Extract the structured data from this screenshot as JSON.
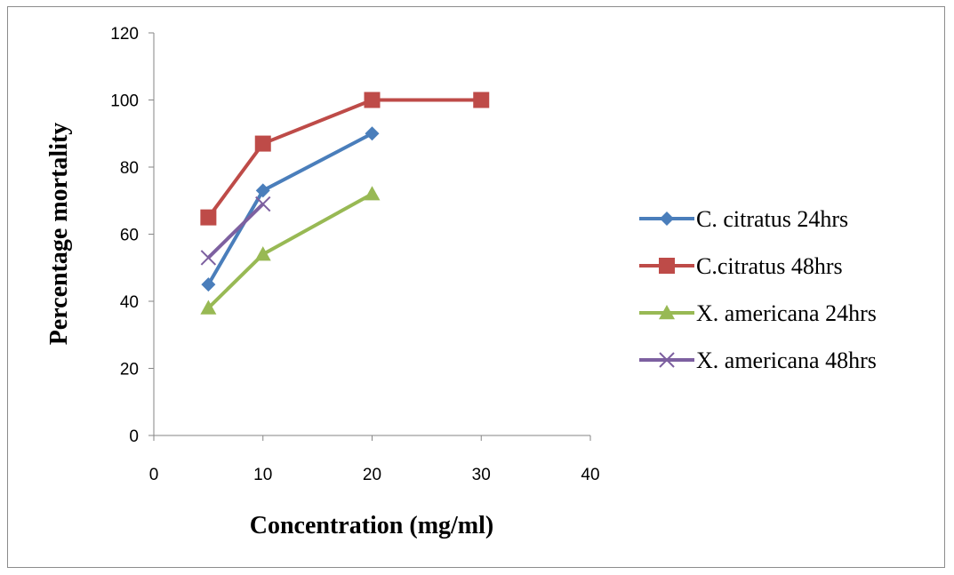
{
  "chart_data": {
    "type": "line",
    "title": "",
    "xlabel": "Concentration  (mg/ml)",
    "ylabel": "Percentage mortality",
    "xlim": [
      0,
      40
    ],
    "ylim": [
      0,
      120
    ],
    "xticks": [
      0,
      10,
      20,
      30,
      40
    ],
    "yticks": [
      0,
      20,
      40,
      60,
      80,
      100,
      120
    ],
    "grid": false,
    "legend_position": "right",
    "series": [
      {
        "name": "C. citratus 24hrs",
        "color": "#4a7ebb",
        "marker": "diamond",
        "points": [
          {
            "x": 5,
            "y": 45
          },
          {
            "x": 10,
            "y": 73
          },
          {
            "x": 20,
            "y": 90
          }
        ]
      },
      {
        "name": "C.citratus 48hrs",
        "color": "#be4b48",
        "marker": "square",
        "points": [
          {
            "x": 5,
            "y": 65
          },
          {
            "x": 10,
            "y": 87
          },
          {
            "x": 20,
            "y": 100
          },
          {
            "x": 30,
            "y": 100
          }
        ]
      },
      {
        "name": "X. americana 24hrs",
        "color": "#98b954",
        "marker": "triangle",
        "points": [
          {
            "x": 5,
            "y": 38
          },
          {
            "x": 10,
            "y": 54
          },
          {
            "x": 20,
            "y": 72
          }
        ]
      },
      {
        "name": "X. americana 48hrs",
        "color": "#7d60a0",
        "marker": "x",
        "points": [
          {
            "x": 5,
            "y": 53
          },
          {
            "x": 10,
            "y": 69
          }
        ]
      }
    ]
  }
}
